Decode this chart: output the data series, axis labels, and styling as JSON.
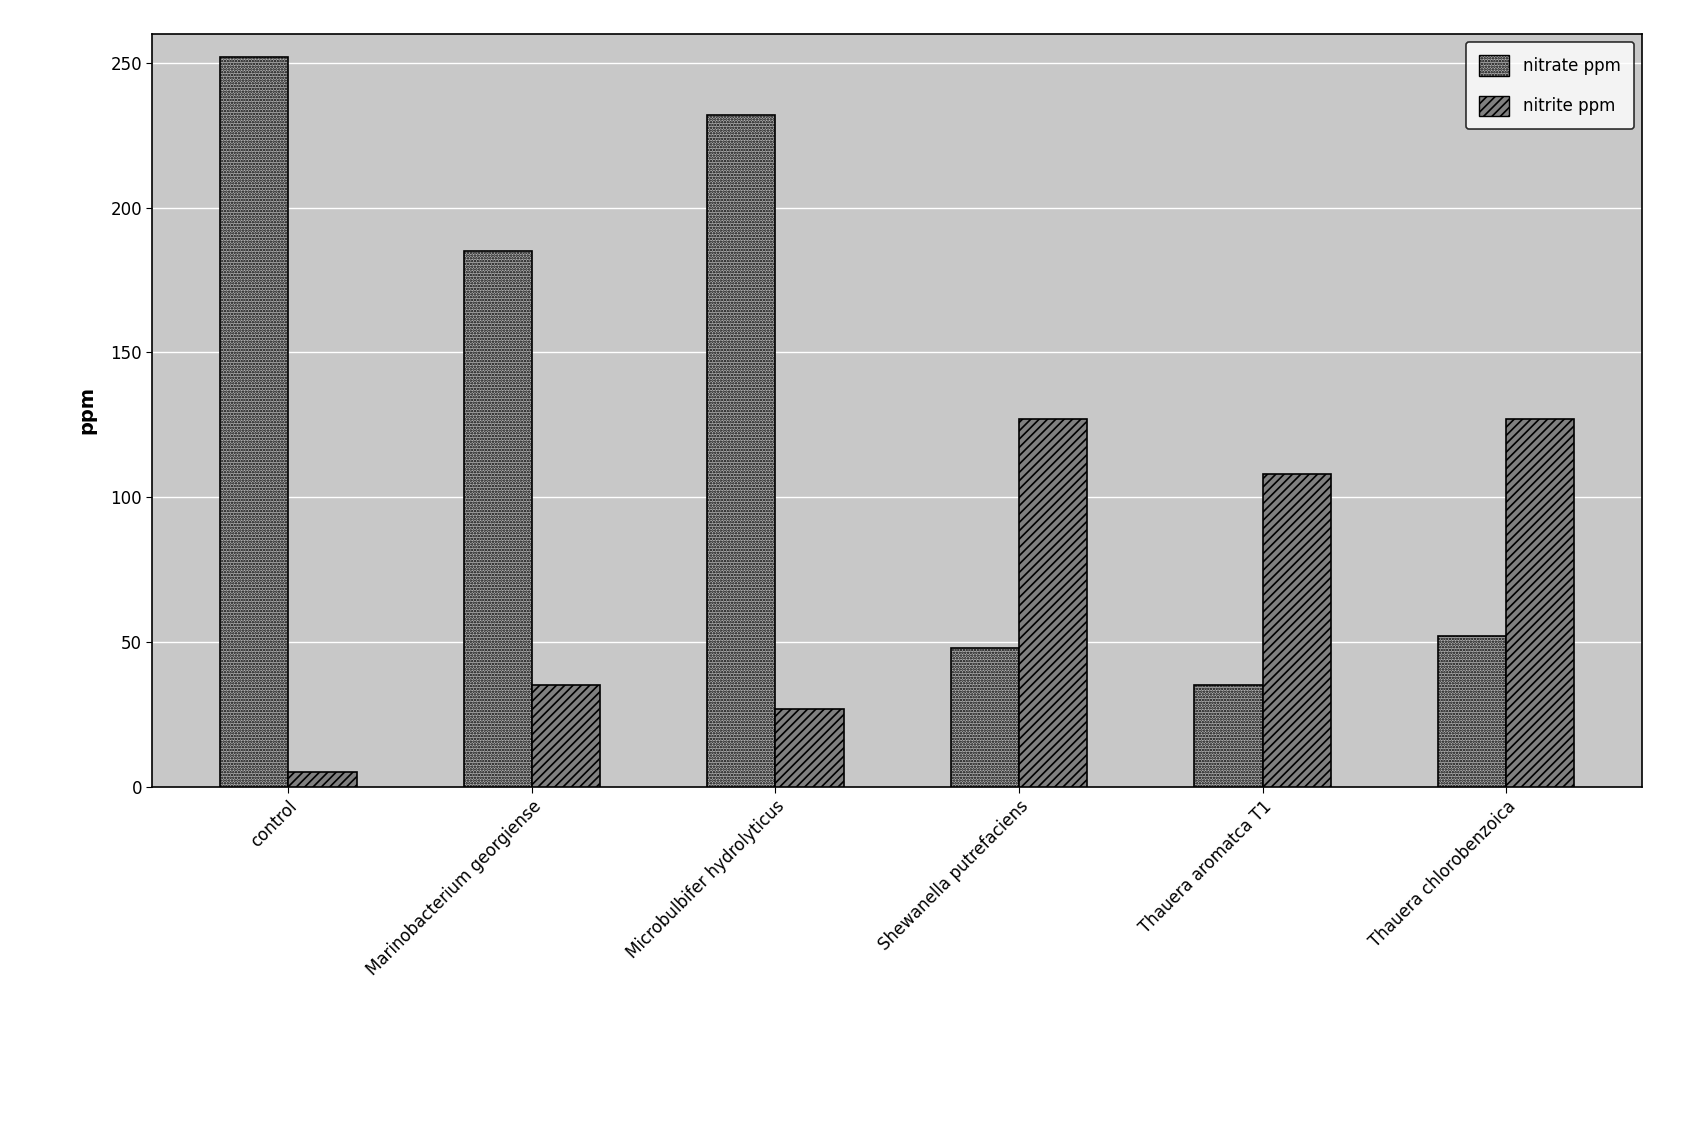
{
  "categories": [
    "control",
    "Marinobacterium georgiense",
    "Microbulbifer hydrolyticus",
    "Shewanella putrefaciens",
    "Thauera aromatca T1",
    "Thauera chlorobenzoica"
  ],
  "nitrate_ppm": [
    252,
    185,
    232,
    48,
    35,
    52
  ],
  "nitrite_ppm": [
    5,
    35,
    27,
    127,
    108,
    127
  ],
  "ylabel": "ppm",
  "ylim": [
    0,
    260
  ],
  "yticks": [
    0,
    50,
    100,
    150,
    200,
    250
  ],
  "legend_labels": [
    "nitrate ppm",
    "nitrite ppm"
  ],
  "plot_bg_color": "#c8c8c8",
  "bar_width": 0.28,
  "tick_fontsize": 12,
  "legend_fontsize": 12,
  "ylabel_fontsize": 14,
  "gridline_color": "#ffffff",
  "outer_bg": "#ffffff"
}
